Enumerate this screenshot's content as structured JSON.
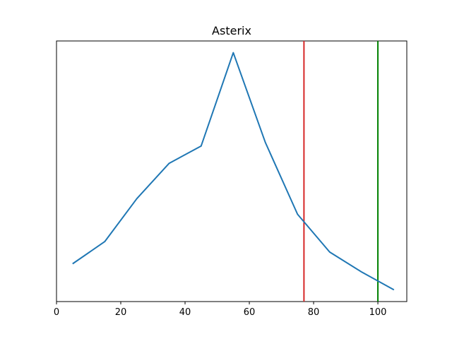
{
  "chart_data": {
    "type": "line",
    "title": "Asterix",
    "xlabel": "",
    "ylabel": "",
    "xlim": [
      0,
      109
    ],
    "ylim": [
      0,
      1
    ],
    "x_ticks": [
      0,
      20,
      40,
      60,
      80,
      100
    ],
    "x_tick_labels": [
      "0",
      "20",
      "40",
      "60",
      "80",
      "100"
    ],
    "y_ticks_visible": false,
    "grid": false,
    "series": [
      {
        "color": "#1f77b4",
        "x": [
          5,
          15,
          25,
          35,
          45,
          55,
          65,
          75,
          85,
          95,
          105
        ],
        "y": [
          0.145,
          0.23,
          0.395,
          0.53,
          0.597,
          0.955,
          0.61,
          0.335,
          0.19,
          0.113,
          0.045
        ]
      }
    ],
    "vlines": [
      {
        "x": 77,
        "color": "#d62728"
      },
      {
        "x": 100,
        "color": "#008000"
      }
    ]
  }
}
